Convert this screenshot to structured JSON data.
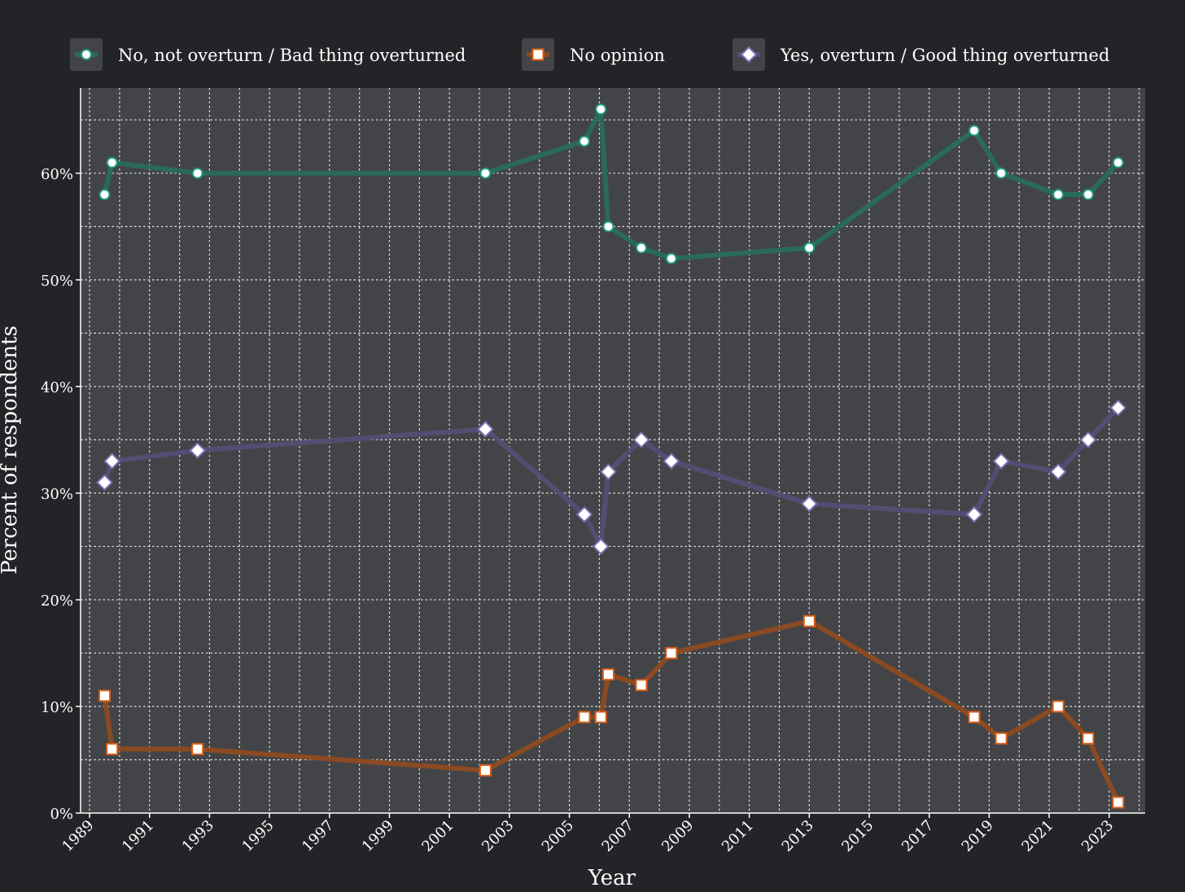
{
  "chart_data": {
    "type": "line",
    "title": "",
    "xlabel": "Year",
    "ylabel": "Percent of respondents",
    "xlim": [
      1988.7,
      2024.2
    ],
    "ylim": [
      0,
      68
    ],
    "x_ticks": [
      1989,
      1991,
      1993,
      1995,
      1997,
      1999,
      2001,
      2003,
      2005,
      2007,
      2009,
      2011,
      2013,
      2015,
      2017,
      2019,
      2021,
      2023
    ],
    "y_ticks": [
      0,
      10,
      20,
      30,
      40,
      50,
      60
    ],
    "y_tick_labels": [
      "0%",
      "10%",
      "20%",
      "30%",
      "40%",
      "50%",
      "60%"
    ],
    "grid": true,
    "legend_position": "top",
    "x": [
      1989.5,
      1989.75,
      1992.6,
      2002.2,
      2005.5,
      2006.05,
      2006.3,
      2007.4,
      2008.4,
      2013.0,
      2018.5,
      2019.4,
      2021.3,
      2022.3,
      2023.3
    ],
    "series": [
      {
        "name": "No, not overturn / Bad thing overturned",
        "color": "#2a6b58",
        "marker": "circle",
        "marker_stroke": "#1d9a78",
        "values": [
          58,
          61,
          60,
          60,
          63,
          66,
          55,
          53,
          52,
          53,
          64,
          60,
          58,
          58,
          61
        ]
      },
      {
        "name": "No opinion",
        "color": "#8a4a22",
        "marker": "square",
        "marker_stroke": "#d95f18",
        "values": [
          11,
          6,
          6,
          4,
          9,
          9,
          13,
          12,
          15,
          18,
          9,
          7,
          10,
          7,
          1
        ]
      },
      {
        "name": "Yes, overturn / Good thing overturned",
        "color": "#544d73",
        "marker": "diamond",
        "marker_stroke": "#7570b3",
        "values": [
          31,
          33,
          34,
          36,
          28,
          25,
          32,
          35,
          33,
          29,
          28,
          33,
          32,
          35,
          38
        ]
      }
    ]
  }
}
